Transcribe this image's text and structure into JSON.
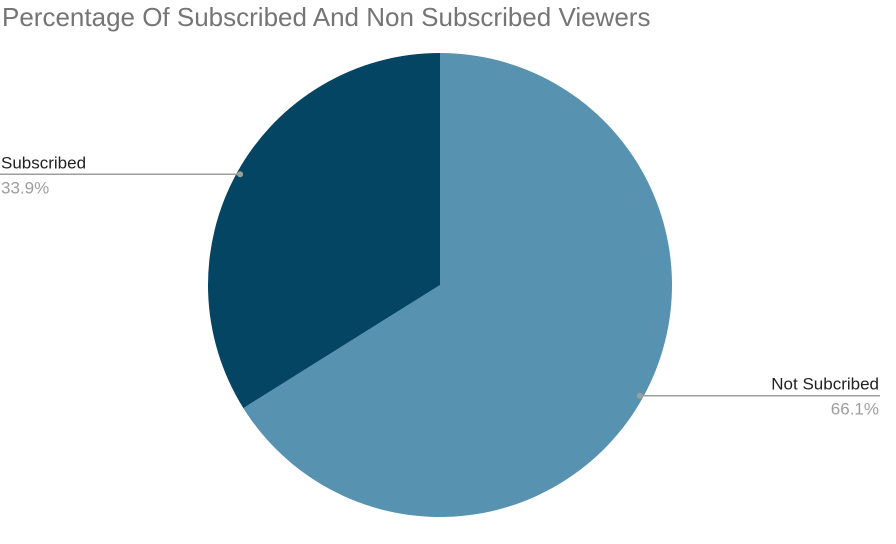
{
  "chart_data": {
    "type": "pie",
    "title": "Percentage Of Subscribed And Non Subscribed Viewers",
    "slices": [
      {
        "label": "Not Subcribed",
        "value": 66.1,
        "value_label": "66.1%",
        "color": "#5792b1"
      },
      {
        "label": "Subscribed",
        "value": 33.9,
        "value_label": "33.9%",
        "color": "#034563"
      }
    ],
    "start_angle_deg": 0,
    "direction": "clockwise",
    "legend": "none",
    "label_color": "#222222",
    "value_label_color": "#9e9e9e",
    "leader_color": "#9e9e9e"
  }
}
